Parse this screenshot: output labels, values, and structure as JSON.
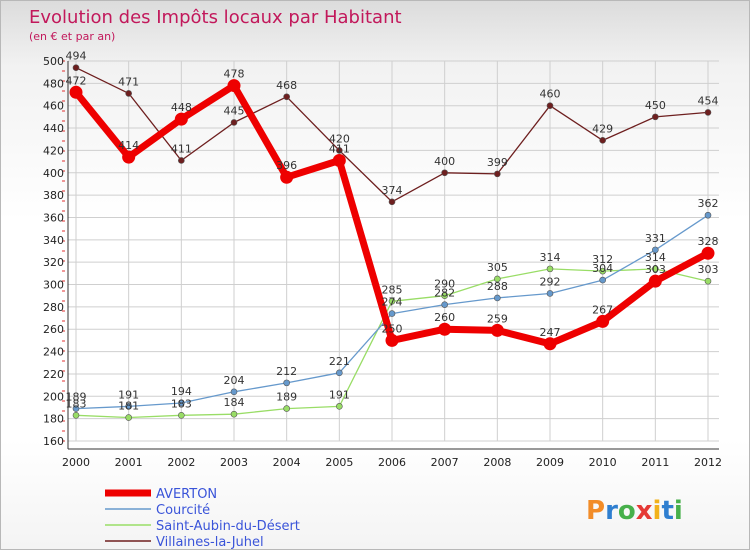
{
  "chart_data": {
    "type": "line",
    "title": "Evolution des Impôts locaux par Habitant",
    "subtitle": "(en € et par an)",
    "xlabel": "",
    "ylabel": "",
    "x": [
      "2000",
      "2001",
      "2002",
      "2003",
      "2004",
      "2005",
      "2006",
      "2007",
      "2008",
      "2009",
      "2010",
      "2011",
      "2012"
    ],
    "ylim": [
      160,
      500
    ],
    "yticks": [
      160,
      180,
      200,
      220,
      240,
      260,
      280,
      300,
      320,
      340,
      360,
      380,
      400,
      420,
      440,
      460,
      480,
      500
    ],
    "grid": true,
    "legend_position": "bottom-left",
    "series": [
      {
        "name": "AVERTON",
        "color": "#ee0000",
        "values": [
          472,
          414,
          448,
          478,
          396,
          411,
          250,
          260,
          259,
          247,
          267,
          303,
          328
        ]
      },
      {
        "name": "Courcité",
        "color": "#6699cc",
        "values": [
          189,
          191,
          194,
          204,
          212,
          221,
          274,
          282,
          288,
          292,
          304,
          331,
          362
        ]
      },
      {
        "name": "Saint-Aubin-du-Désert",
        "color": "#99dd66",
        "values": [
          183,
          181,
          183,
          184,
          189,
          191,
          285,
          290,
          305,
          314,
          312,
          314,
          303
        ]
      },
      {
        "name": "Villaines-la-Juhel",
        "color": "#6e1f1f",
        "values": [
          494,
          471,
          411,
          445,
          468,
          420,
          374,
          400,
          399,
          460,
          429,
          450,
          454
        ]
      }
    ]
  },
  "branding": {
    "logo_text": "Proxiti"
  }
}
